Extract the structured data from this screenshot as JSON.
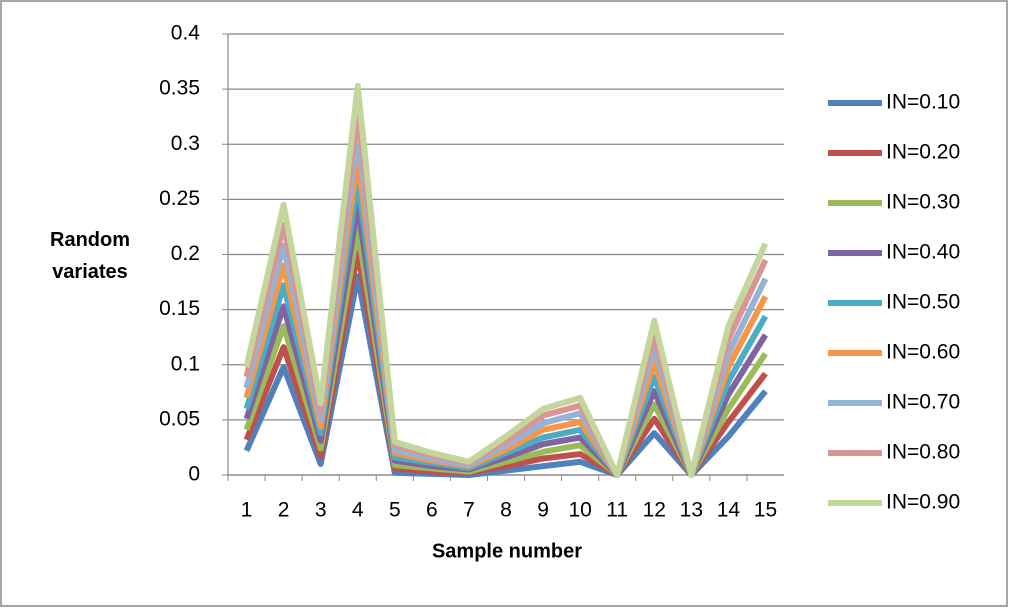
{
  "chart_data": {
    "type": "line",
    "x_label": "Sample number",
    "y_label": "Random variates",
    "categories": [
      "1",
      "2",
      "3",
      "4",
      "5",
      "6",
      "7",
      "8",
      "9",
      "10",
      "11",
      "12",
      "13",
      "14",
      "15"
    ],
    "ylim": [
      0,
      0.4
    ],
    "yticks": [
      0,
      0.05,
      0.1,
      0.15,
      0.2,
      0.25,
      0.3,
      0.35,
      0.4
    ],
    "grid": true,
    "legend": "right",
    "series": [
      {
        "name": "IN=0.10",
        "color": "#4f81bd",
        "values": [
          0.022,
          0.098,
          0.01,
          0.18,
          0.002,
          0.001,
          0,
          0.004,
          0.008,
          0.012,
          0,
          0.038,
          0,
          0.035,
          0.076
        ]
      },
      {
        "name": "IN=0.20",
        "color": "#c0504d",
        "values": [
          0.032,
          0.116,
          0.017,
          0.202,
          0.006,
          0.003,
          0.002,
          0.008,
          0.015,
          0.019,
          0,
          0.051,
          0,
          0.048,
          0.092
        ]
      },
      {
        "name": "IN=0.30",
        "color": "#9bbb59",
        "values": [
          0.041,
          0.135,
          0.024,
          0.223,
          0.009,
          0.006,
          0.003,
          0.012,
          0.021,
          0.027,
          0,
          0.064,
          0,
          0.06,
          0.11
        ]
      },
      {
        "name": "IN=0.40",
        "color": "#8064a2",
        "values": [
          0.051,
          0.153,
          0.031,
          0.245,
          0.013,
          0.008,
          0.005,
          0.016,
          0.028,
          0.034,
          0,
          0.076,
          0,
          0.073,
          0.127
        ]
      },
      {
        "name": "IN=0.50",
        "color": "#4bacc6",
        "values": [
          0.06,
          0.172,
          0.038,
          0.267,
          0.016,
          0.011,
          0.006,
          0.02,
          0.034,
          0.041,
          0,
          0.089,
          0,
          0.085,
          0.144
        ]
      },
      {
        "name": "IN=0.60",
        "color": "#f79646",
        "values": [
          0.07,
          0.19,
          0.044,
          0.288,
          0.02,
          0.013,
          0.008,
          0.023,
          0.041,
          0.048,
          0,
          0.102,
          0,
          0.098,
          0.162
        ]
      },
      {
        "name": "IN=0.70",
        "color": "#95b3d7",
        "values": [
          0.079,
          0.208,
          0.051,
          0.31,
          0.023,
          0.015,
          0.009,
          0.027,
          0.047,
          0.056,
          0,
          0.115,
          0,
          0.11,
          0.178
        ]
      },
      {
        "name": "IN=0.80",
        "color": "#d99694",
        "values": [
          0.089,
          0.227,
          0.058,
          0.331,
          0.027,
          0.018,
          0.011,
          0.031,
          0.054,
          0.063,
          0,
          0.127,
          0,
          0.123,
          0.195
        ]
      },
      {
        "name": "IN=0.90",
        "color": "#c3d69b",
        "values": [
          0.098,
          0.245,
          0.065,
          0.353,
          0.03,
          0.02,
          0.012,
          0.035,
          0.06,
          0.07,
          0,
          0.14,
          0,
          0.135,
          0.21
        ]
      }
    ]
  }
}
